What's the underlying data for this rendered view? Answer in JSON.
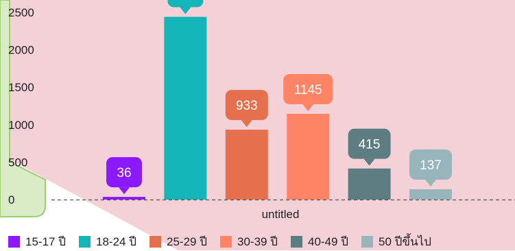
{
  "chart_data": {
    "type": "bar",
    "categories": [
      "15-17 ปี",
      "18-24 ปี",
      "25-29 ปี",
      "30-39 ปี",
      "40-49 ปี",
      "50 ปีขึ้นไป"
    ],
    "values": [
      36,
      2440,
      933,
      1145,
      415,
      137
    ],
    "data_labels": [
      "36",
      "",
      "933",
      "1145",
      "415",
      "137"
    ],
    "colors": [
      "#8c1aff",
      "#13b5b9",
      "#e4704e",
      "#ff8466",
      "#5d7e81",
      "#97b5bb"
    ],
    "xlabel": "untitled",
    "ylabel": "",
    "ylim": [
      0,
      2700
    ],
    "yticks": [
      "0",
      "500",
      "1000",
      "1500",
      "2000",
      "2500"
    ],
    "ytick_values": [
      0,
      500,
      1000,
      1500,
      2000,
      2500
    ],
    "grid": false,
    "legend_position": "bottom",
    "background_colors": {
      "plot": "#f4d1d6",
      "left_panel": "#d9ecc5",
      "left_panel_border": "#9ccf71"
    }
  }
}
